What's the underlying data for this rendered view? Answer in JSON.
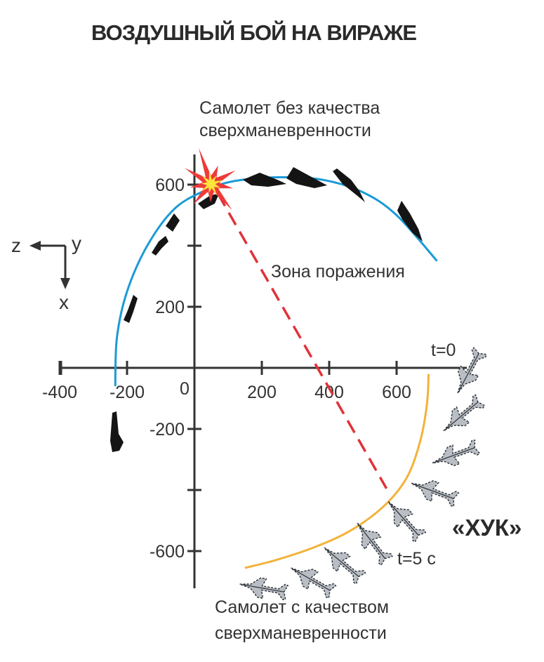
{
  "title": "ВОЗДУШНЫЙ БОЙ НА ВИРАЖЕ",
  "labels": {
    "plane_without": [
      "Самолет без качества",
      "сверхманевренности"
    ],
    "plane_with": [
      "Самолет с качеством",
      "сверхманевренности"
    ],
    "kill_zone": "Зона поражения",
    "huk": "«ХУК»",
    "t0": "t=0",
    "t5": "t=5 с",
    "origin": "0"
  },
  "axes": {
    "z_letter": "z",
    "y_letter": "y",
    "x_letter": "x",
    "horizontal_ticks": [
      {
        "value": -400,
        "label": "-400"
      },
      {
        "value": -200,
        "label": "-200"
      },
      {
        "value": 200,
        "label": "200"
      },
      {
        "value": 400,
        "label": "400"
      },
      {
        "value": 600,
        "label": "600"
      }
    ],
    "vertical_ticks": [
      {
        "value": 600,
        "label": "600"
      },
      {
        "value": 400,
        "label": ""
      },
      {
        "value": 200,
        "label": "200"
      },
      {
        "value": -200,
        "label": "-200"
      },
      {
        "value": -400,
        "label": ""
      },
      {
        "value": -600,
        "label": "-600"
      }
    ],
    "horizontal_range": [
      -400,
      660
    ],
    "vertical_range": [
      -660,
      660
    ]
  },
  "trajectories": {
    "without_supermaneuverability": {
      "color": "#1b9ad6",
      "points": [
        [
          -235,
          -60
        ],
        [
          -230,
          100
        ],
        [
          -200,
          250
        ],
        [
          -140,
          400
        ],
        [
          -60,
          520
        ],
        [
          30,
          580
        ],
        [
          120,
          612
        ],
        [
          250,
          624
        ],
        [
          380,
          616
        ],
        [
          500,
          575
        ],
        [
          600,
          500
        ],
        [
          720,
          350
        ]
      ]
    },
    "with_supermaneuverability": {
      "color": "#f3b23a",
      "points": [
        [
          150,
          -655
        ],
        [
          240,
          -630
        ],
        [
          350,
          -590
        ],
        [
          460,
          -535
        ],
        [
          560,
          -455
        ],
        [
          630,
          -360
        ],
        [
          670,
          -240
        ],
        [
          690,
          -120
        ],
        [
          695,
          -20
        ]
      ]
    },
    "kill_zone_line": {
      "color": "#e0323a",
      "from": [
        70,
        570
      ],
      "to": [
        570,
        -395
      ]
    }
  },
  "colors": {
    "axis": "#333333",
    "blue_track": "#1b9ad6",
    "orange_track": "#f3b23a",
    "dash": "#e0323a",
    "burst_red": "#ef3a3a",
    "burst_yellow": "#ffe43a"
  }
}
